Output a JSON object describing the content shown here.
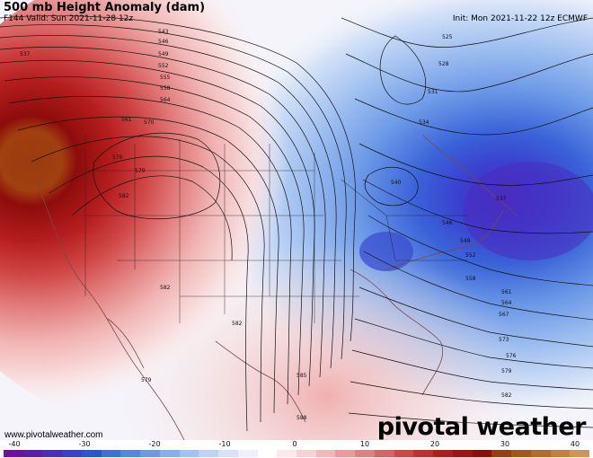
{
  "header": {
    "title": "500 mb Height Anomaly (dam)",
    "valid": "F144 Valid: Sun 2021-11-28 12z",
    "init": "Init: Mon 2021-11-22 12z ECMWF"
  },
  "footer": {
    "website": "www.pivotalweather.com",
    "brand": "pivotal weather"
  },
  "colorbar": {
    "ticks": [
      "-40",
      "-30",
      "-20",
      "-10",
      "0",
      "10",
      "20",
      "30",
      "40"
    ],
    "colors": [
      "#6a0fa8",
      "#5a1bb0",
      "#4a2cbf",
      "#3a3fcf",
      "#2c55d6",
      "#3f6fdc",
      "#5585e2",
      "#6d9ae7",
      "#88aeec",
      "#a3c2f1",
      "#bdd3f5",
      "#d6e3f8",
      "#ecf1fb",
      "#ffffff",
      "#fbeaea",
      "#f6d2d2",
      "#f0b8b8",
      "#ea9c9c",
      "#e27f7f",
      "#d96262",
      "#cf4646",
      "#c32d2d",
      "#b41b1b",
      "#a31212",
      "#8e0c0c",
      "#9b3a14",
      "#a8521c",
      "#b76a2a",
      "#c4803a",
      "#d09650"
    ]
  },
  "contours": {
    "labels": [
      "537",
      "540",
      "543",
      "546",
      "549",
      "552",
      "555",
      "558",
      "561",
      "564",
      "567",
      "570",
      "573",
      "576",
      "579",
      "582",
      "585",
      "588",
      "525",
      "528",
      "531",
      "534"
    ]
  }
}
